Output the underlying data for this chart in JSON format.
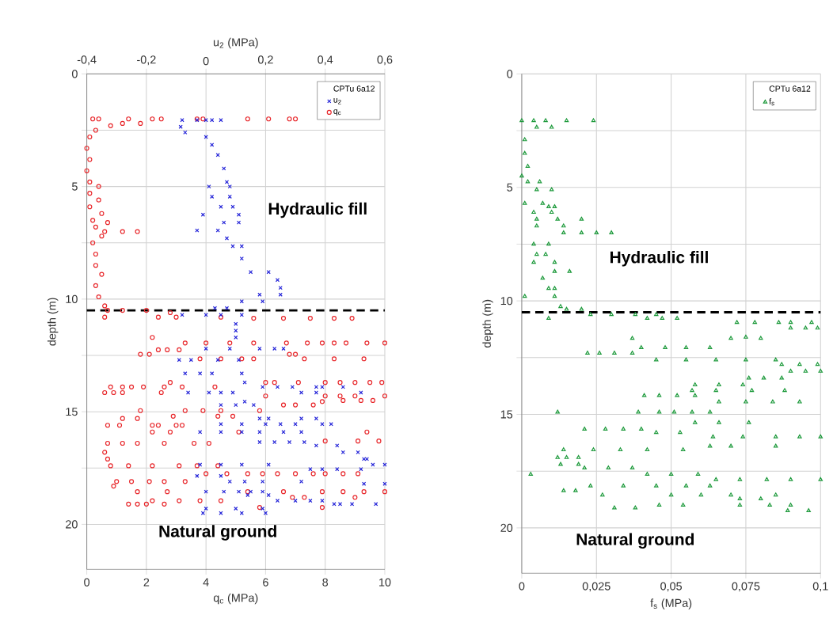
{
  "chart_data": [
    {
      "type": "scatter",
      "xlabel": "q$_{c}$ (MPa)",
      "x2label": "u$_{2}$ (MPa)",
      "ylabel": "depth (m)",
      "legend_title": "CPTu 6a12",
      "legend": "top right",
      "grid": true,
      "xlim": [
        0,
        10
      ],
      "xticks": [
        0,
        2,
        4,
        6,
        8,
        10
      ],
      "x2lim": [
        -0.4,
        0.6
      ],
      "x2ticks": [
        {
          "value": -0.4,
          "label": "-0,4"
        },
        {
          "value": -0.2,
          "label": "-0,2"
        },
        0,
        {
          "value": 0.2,
          "label": "0,2"
        },
        {
          "value": 0.4,
          "label": "0,4"
        },
        {
          "value": 0.6,
          "label": "0,6"
        }
      ],
      "ylim": [
        22,
        0
      ],
      "yticks": [
        0,
        {
          "value": 2.5,
          "label": null
        },
        5,
        {
          "value": 7.5,
          "label": null
        },
        10,
        {
          "value": 12.5,
          "label": null
        },
        15,
        {
          "value": 17.5,
          "label": null
        },
        20
      ],
      "ref_lines": [
        {
          "axis": "y",
          "value": 10.5,
          "color": "#000000",
          "line_style": "dashed"
        }
      ],
      "annotations": [
        "Hydraulic fill",
        "Natural ground"
      ],
      "series": [
        {
          "name": "u$_{2}$",
          "color": "#2323d8",
          "marker": "cross",
          "axis": "x2",
          "x": [
            -0.08,
            -0.03,
            0.0,
            0.02,
            0.05,
            -0.085,
            -0.07,
            0.0,
            0.02,
            0.04,
            0.06,
            0.07,
            0.01,
            0.08,
            0.02,
            0.08,
            0.05,
            0.09,
            -0.01,
            0.11,
            0.06,
            0.11,
            -0.03,
            0.04,
            0.07,
            0.09,
            0.12,
            0.12,
            0.15,
            0.21,
            0.24,
            0.25,
            0.18,
            0.25,
            0.12,
            0.19,
            0.03,
            0.07,
            -0.08,
            0.0,
            0.05,
            0.12,
            0.1,
            0.1,
            0.1,
            0.0,
            0.08,
            0.18,
            0.23,
            0.26,
            -0.09,
            -0.05,
            0.04,
            0.11,
            -0.07,
            -0.02,
            0.02,
            0.12,
            0.13,
            0.19,
            0.24,
            0.29,
            0.37,
            0.39,
            0.46,
            -0.06,
            0.01,
            0.05,
            0.09,
            0.32,
            0.37,
            0.52,
            0.13,
            0.05,
            0.1,
            0.16,
            0.18,
            0.21,
            0.32,
            0.37,
            0.05,
            0.12,
            0.2,
            0.25,
            0.3,
            0.39,
            0.42,
            -0.02,
            0.05,
            0.12,
            0.18,
            0.26,
            0.32,
            0.18,
            0.23,
            0.28,
            0.33,
            0.37,
            0.44,
            0.46,
            0.51,
            0.53,
            0.54,
            -0.02,
            0.05,
            0.12,
            0.21,
            0.56,
            0.6,
            0.35,
            0.39,
            0.44,
            0.52,
            -0.03,
            0.05,
            0.08,
            0.13,
            0.19,
            0.32,
            0.53,
            0.6,
            0.0,
            0.06,
            0.11,
            0.15,
            0.19,
            0.14,
            0.21,
            0.24,
            0.3,
            0.35,
            0.39,
            0.43,
            0.45,
            0.49,
            0.57,
            0.0,
            0.1,
            0.19,
            -0.01,
            0.05,
            0.12,
            0.2
          ],
          "values": [
            2.05,
            2.05,
            2.05,
            2.05,
            2.05,
            2.35,
            2.6,
            2.8,
            3.15,
            3.6,
            4.2,
            4.8,
            5.0,
            5.0,
            5.45,
            5.45,
            5.9,
            5.9,
            6.25,
            6.25,
            6.6,
            6.6,
            6.95,
            6.95,
            7.3,
            7.65,
            7.65,
            8.2,
            8.8,
            8.8,
            9.15,
            9.5,
            9.8,
            9.8,
            10.1,
            10.1,
            10.4,
            10.4,
            10.7,
            10.7,
            10.7,
            10.7,
            11.1,
            11.4,
            11.7,
            12.2,
            12.2,
            12.2,
            12.2,
            12.2,
            12.7,
            12.7,
            12.7,
            12.7,
            13.3,
            13.3,
            13.3,
            13.3,
            13.7,
            13.9,
            13.9,
            13.9,
            13.9,
            13.9,
            13.9,
            14.15,
            14.15,
            14.15,
            14.15,
            14.15,
            14.15,
            14.15,
            14.55,
            14.7,
            14.7,
            14.7,
            15.3,
            15.3,
            15.3,
            15.3,
            15.55,
            15.55,
            15.55,
            15.55,
            15.55,
            15.55,
            15.55,
            15.9,
            15.9,
            15.9,
            15.9,
            15.9,
            15.9,
            16.35,
            16.35,
            16.35,
            16.35,
            16.5,
            16.5,
            16.8,
            16.8,
            17.1,
            17.1,
            17.35,
            17.35,
            17.35,
            17.35,
            17.35,
            17.35,
            17.55,
            17.55,
            17.55,
            17.55,
            17.85,
            17.85,
            18.1,
            18.1,
            18.1,
            18.1,
            18.2,
            18.2,
            18.55,
            18.55,
            18.55,
            18.55,
            18.55,
            18.7,
            18.7,
            18.95,
            18.95,
            18.95,
            18.95,
            19.1,
            19.1,
            19.1,
            19.1,
            19.3,
            19.3,
            19.3,
            19.5,
            19.5,
            19.5,
            19.5
          ]
        },
        {
          "name": "q$_{c}$",
          "color": "#e8262a",
          "marker": "circle",
          "x": [
            0.2,
            0.4,
            1.4,
            2.2,
            2.5,
            3.7,
            3.9,
            5.4,
            6.1,
            6.8,
            7.0,
            1.8,
            1.2,
            0.8,
            0.3,
            0.1,
            0.0,
            0.1,
            0.0,
            0.1,
            0.4,
            0.1,
            0.4,
            0.1,
            0.5,
            0.2,
            0.7,
            0.3,
            0.6,
            1.2,
            1.7,
            0.5,
            0.2,
            0.3,
            0.3,
            0.5,
            0.3,
            0.4,
            0.6,
            0.7,
            1.2,
            2.0,
            2.8,
            0.6,
            2.4,
            3.0,
            4.5,
            5.6,
            6.6,
            7.5,
            8.3,
            8.9,
            2.2,
            3.3,
            4.0,
            4.8,
            5.6,
            6.7,
            7.4,
            7.9,
            8.3,
            8.7,
            9.4,
            10.0,
            2.4,
            2.7,
            3.1,
            1.8,
            2.1,
            6.8,
            7.0,
            3.8,
            4.5,
            5.2,
            5.6,
            7.3,
            8.3,
            9.3,
            2.8,
            6.0,
            6.3,
            7.1,
            8.0,
            8.5,
            9.0,
            9.5,
            9.9,
            0.8,
            1.2,
            1.5,
            1.9,
            2.6,
            3.2,
            4.3,
            0.6,
            0.9,
            1.2,
            2.5,
            6.0,
            8.0,
            8.5,
            9.0,
            10.0,
            7.9,
            8.6,
            9.2,
            9.6,
            6.6,
            7.0,
            7.6,
            1.8,
            3.3,
            3.9,
            4.5,
            5.8,
            2.9,
            4.4,
            4.9,
            1.2,
            1.7,
            0.7,
            1.1,
            2.2,
            2.4,
            3.0,
            3.2,
            2.2,
            2.8,
            5.1,
            9.4,
            8.0,
            9.1,
            9.8,
            0.7,
            1.2,
            1.7,
            2.6,
            3.6,
            4.1,
            0.6,
            0.7,
            0.8,
            1.4,
            2.2,
            3.1,
            3.7,
            4.4,
            4.0,
            4.7,
            5.4,
            5.9,
            6.4,
            7.0,
            7.6,
            8.0,
            8.6,
            9.1,
            1.0,
            1.5,
            2.1,
            2.6,
            3.3,
            0.9,
            1.7,
            2.7,
            5.4,
            6.6,
            7.9,
            8.6,
            9.3,
            10.0,
            6.9,
            7.3,
            9.0,
            2.2,
            3.1,
            3.8,
            4.5,
            1.4,
            1.7,
            2.0,
            2.6,
            5.8,
            7.9
          ],
          "values": [
            2.0,
            2.0,
            2.0,
            2.0,
            2.0,
            2.0,
            2.0,
            2.0,
            2.0,
            2.0,
            2.0,
            2.2,
            2.2,
            2.3,
            2.5,
            2.8,
            3.3,
            3.8,
            4.3,
            4.8,
            5.0,
            5.3,
            5.6,
            5.9,
            6.2,
            6.5,
            6.6,
            6.8,
            7.0,
            7.0,
            7.0,
            7.2,
            7.5,
            8.0,
            8.5,
            8.9,
            9.4,
            9.9,
            10.3,
            10.5,
            10.5,
            10.5,
            10.6,
            10.8,
            10.8,
            10.8,
            10.8,
            10.85,
            10.85,
            10.85,
            10.85,
            10.85,
            11.7,
            11.95,
            11.95,
            11.95,
            11.95,
            11.95,
            11.95,
            11.95,
            11.95,
            11.95,
            11.95,
            11.95,
            12.25,
            12.25,
            12.25,
            12.45,
            12.45,
            12.45,
            12.45,
            12.65,
            12.65,
            12.65,
            12.65,
            12.65,
            12.65,
            12.65,
            13.7,
            13.7,
            13.7,
            13.7,
            13.7,
            13.7,
            13.7,
            13.7,
            13.7,
            13.9,
            13.9,
            13.9,
            13.9,
            13.9,
            13.9,
            13.9,
            14.15,
            14.15,
            14.15,
            14.15,
            14.3,
            14.3,
            14.3,
            14.3,
            14.3,
            14.55,
            14.5,
            14.5,
            14.5,
            14.7,
            14.7,
            14.7,
            14.95,
            14.95,
            14.95,
            14.95,
            14.95,
            15.2,
            15.2,
            15.2,
            15.3,
            15.3,
            15.6,
            15.6,
            15.6,
            15.6,
            15.6,
            15.6,
            15.9,
            15.9,
            15.9,
            15.9,
            16.3,
            16.3,
            16.3,
            16.4,
            16.4,
            16.4,
            16.4,
            16.4,
            16.4,
            16.8,
            17.1,
            17.4,
            17.4,
            17.4,
            17.4,
            17.4,
            17.4,
            17.75,
            17.75,
            17.75,
            17.75,
            17.75,
            17.75,
            17.75,
            17.75,
            17.75,
            17.75,
            18.1,
            18.1,
            18.1,
            18.1,
            18.1,
            18.3,
            18.55,
            18.55,
            18.55,
            18.55,
            18.55,
            18.55,
            18.55,
            18.55,
            18.8,
            18.8,
            18.8,
            18.95,
            18.95,
            18.95,
            18.95,
            19.1,
            19.1,
            19.1,
            19.1,
            19.25,
            19.25
          ]
        }
      ]
    },
    {
      "type": "scatter",
      "xlabel": "f$_{s}$ (MPa)",
      "ylabel": "depth (m)",
      "legend_title": "CPTu 6a12",
      "legend": "top right",
      "grid": true,
      "xlim": [
        0,
        0.1
      ],
      "xticks": [
        0,
        {
          "value": 0.025,
          "label": "0,025"
        },
        {
          "value": 0.05,
          "label": "0,05"
        },
        {
          "value": 0.075,
          "label": "0,075"
        },
        {
          "value": 0.1,
          "label": "0,1"
        }
      ],
      "ylim": [
        22,
        0
      ],
      "yticks": [
        0,
        {
          "value": 2.5,
          "label": null
        },
        5,
        {
          "value": 7.5,
          "label": null
        },
        10,
        {
          "value": 12.5,
          "label": null
        },
        15,
        {
          "value": 17.5,
          "label": null
        },
        20
      ],
      "ref_lines": [
        {
          "axis": "y",
          "value": 10.5,
          "color": "#000000",
          "line_style": "dashed"
        }
      ],
      "annotations": [
        "Hydraulic fill",
        "Natural ground"
      ],
      "series": [
        {
          "name": "f$_{s}$",
          "color": "#1e9a3c",
          "marker": "triangle",
          "x": [
            0.0,
            0.004,
            0.008,
            0.015,
            0.024,
            0.005,
            0.01,
            0.001,
            0.001,
            0.002,
            0.0,
            0.002,
            0.006,
            0.005,
            0.01,
            0.001,
            0.007,
            0.009,
            0.011,
            0.004,
            0.01,
            0.005,
            0.012,
            0.02,
            0.005,
            0.014,
            0.014,
            0.02,
            0.025,
            0.03,
            0.004,
            0.009,
            0.005,
            0.008,
            0.004,
            0.011,
            0.011,
            0.016,
            0.007,
            0.009,
            0.011,
            0.001,
            0.011,
            0.013,
            0.015,
            0.02,
            0.023,
            0.03,
            0.038,
            0.045,
            0.009,
            0.042,
            0.047,
            0.052,
            0.072,
            0.078,
            0.086,
            0.09,
            0.097,
            0.09,
            0.095,
            0.099,
            0.037,
            0.07,
            0.075,
            0.08,
            0.04,
            0.048,
            0.055,
            0.063,
            0.022,
            0.026,
            0.031,
            0.037,
            0.045,
            0.055,
            0.065,
            0.075,
            0.085,
            0.087,
            0.093,
            0.099,
            0.09,
            0.095,
            0.1,
            0.076,
            0.081,
            0.087,
            0.058,
            0.066,
            0.074,
            0.057,
            0.065,
            0.077,
            0.088,
            0.041,
            0.046,
            0.052,
            0.058,
            0.066,
            0.075,
            0.084,
            0.093,
            0.012,
            0.039,
            0.046,
            0.051,
            0.057,
            0.063,
            0.058,
            0.066,
            0.076,
            0.021,
            0.028,
            0.034,
            0.04,
            0.045,
            0.053,
            0.064,
            0.074,
            0.085,
            0.093,
            0.1,
            0.063,
            0.07,
            0.085,
            0.014,
            0.024,
            0.033,
            0.042,
            0.054,
            0.012,
            0.015,
            0.019,
            0.013,
            0.019,
            0.021,
            0.029,
            0.037,
            0.003,
            0.042,
            0.05,
            0.059,
            0.065,
            0.073,
            0.082,
            0.09,
            0.1,
            0.023,
            0.034,
            0.045,
            0.055,
            0.063,
            0.014,
            0.018,
            0.027,
            0.05,
            0.06,
            0.07,
            0.085,
            0.073,
            0.08,
            0.046,
            0.054,
            0.073,
            0.083,
            0.09,
            0.031,
            0.038,
            0.089,
            0.096
          ],
          "values": [
            2.06,
            2.06,
            2.06,
            2.06,
            2.06,
            2.35,
            2.35,
            2.9,
            3.5,
            4.07,
            4.5,
            4.75,
            4.75,
            5.1,
            5.1,
            5.7,
            5.7,
            5.85,
            5.85,
            6.1,
            6.1,
            6.4,
            6.4,
            6.4,
            6.7,
            6.7,
            7.0,
            7.0,
            7.0,
            7.0,
            7.5,
            7.5,
            7.95,
            7.95,
            8.3,
            8.3,
            8.7,
            8.7,
            9.0,
            9.45,
            9.45,
            9.8,
            9.8,
            10.25,
            10.37,
            10.37,
            10.6,
            10.6,
            10.6,
            10.6,
            10.77,
            10.77,
            10.77,
            10.77,
            10.95,
            10.95,
            10.95,
            10.95,
            10.95,
            11.2,
            11.2,
            11.2,
            11.65,
            11.65,
            11.6,
            11.65,
            12.06,
            12.06,
            12.06,
            12.06,
            12.3,
            12.3,
            12.3,
            12.3,
            12.6,
            12.6,
            12.6,
            12.6,
            12.6,
            12.8,
            12.8,
            12.8,
            13.1,
            13.1,
            13.1,
            13.4,
            13.4,
            13.4,
            13.7,
            13.7,
            13.7,
            13.95,
            13.95,
            13.95,
            13.95,
            14.17,
            14.17,
            14.17,
            14.17,
            14.45,
            14.45,
            14.45,
            14.45,
            14.9,
            14.9,
            14.9,
            14.9,
            14.9,
            14.9,
            15.36,
            15.36,
            15.36,
            15.65,
            15.65,
            15.65,
            15.65,
            15.8,
            15.8,
            15.99,
            15.99,
            15.99,
            15.99,
            15.99,
            16.4,
            16.4,
            16.4,
            16.56,
            16.56,
            16.56,
            16.56,
            16.56,
            16.9,
            16.9,
            16.9,
            17.2,
            17.2,
            17.36,
            17.36,
            17.36,
            17.64,
            17.64,
            17.64,
            17.64,
            17.87,
            17.87,
            17.87,
            17.87,
            17.87,
            18.15,
            18.15,
            18.15,
            18.15,
            18.15,
            18.36,
            18.36,
            18.55,
            18.55,
            18.55,
            18.55,
            18.55,
            18.72,
            18.72,
            19.0,
            19.0,
            19.0,
            19.0,
            19.0,
            19.12,
            19.12,
            19.24,
            19.24
          ]
        }
      ]
    }
  ]
}
